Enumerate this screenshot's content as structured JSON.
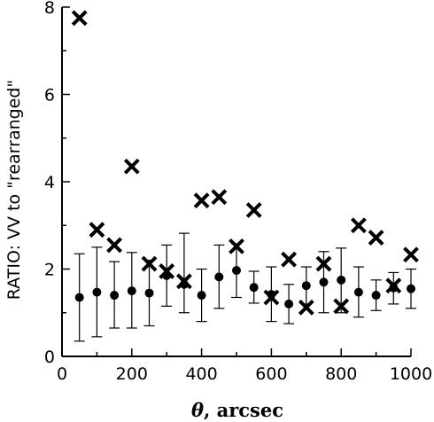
{
  "chart_data": {
    "type": "scatter",
    "xlabel_symbol": "θ",
    "xlabel_rest": ", arcsec",
    "ylabel": "RATIO: VV to \"rearranged\"",
    "xlim": [
      0,
      1000
    ],
    "ylim": [
      0,
      8
    ],
    "x_ticks": [
      0,
      200,
      400,
      600,
      800,
      1000
    ],
    "y_ticks": [
      0,
      2,
      4,
      6,
      8
    ],
    "x_minor_step": 100,
    "y_minor_step": 1,
    "grid": false,
    "legend": "none",
    "series": [
      {
        "marker": "circle",
        "color": "#000000",
        "points": [
          {
            "x": 50,
            "y": 1.35,
            "err_low": 0.35,
            "err_high": 2.35
          },
          {
            "x": 100,
            "y": 1.47,
            "err_low": 0.45,
            "err_high": 2.5
          },
          {
            "x": 150,
            "y": 1.4,
            "err_low": 0.65,
            "err_high": 2.17
          },
          {
            "x": 200,
            "y": 1.5,
            "err_low": 0.65,
            "err_high": 2.38
          },
          {
            "x": 250,
            "y": 1.45,
            "err_low": 0.7,
            "err_high": 2.2
          },
          {
            "x": 300,
            "y": 1.85,
            "err_low": 1.15,
            "err_high": 2.55
          },
          {
            "x": 350,
            "y": 1.65,
            "err_low": 1.0,
            "err_high": 2.82
          },
          {
            "x": 400,
            "y": 1.4,
            "err_low": 0.8,
            "err_high": 2.0
          },
          {
            "x": 450,
            "y": 1.82,
            "err_low": 1.1,
            "err_high": 2.55
          },
          {
            "x": 500,
            "y": 1.97,
            "err_low": 1.35,
            "err_high": 2.58
          },
          {
            "x": 550,
            "y": 1.58,
            "err_low": 1.22,
            "err_high": 1.95
          },
          {
            "x": 600,
            "y": 1.42,
            "err_low": 0.8,
            "err_high": 2.05
          },
          {
            "x": 650,
            "y": 1.2,
            "err_low": 0.75,
            "err_high": 1.65
          },
          {
            "x": 700,
            "y": 1.62,
            "err_low": 1.2,
            "err_high": 2.05
          },
          {
            "x": 750,
            "y": 1.7,
            "err_low": 1.0,
            "err_high": 2.4
          },
          {
            "x": 800,
            "y": 1.75,
            "err_low": 1.0,
            "err_high": 2.48
          },
          {
            "x": 850,
            "y": 1.47,
            "err_low": 0.9,
            "err_high": 2.05
          },
          {
            "x": 900,
            "y": 1.4,
            "err_low": 1.05,
            "err_high": 1.75
          },
          {
            "x": 950,
            "y": 1.57,
            "err_low": 1.2,
            "err_high": 1.92
          },
          {
            "x": 1000,
            "y": 1.55,
            "err_low": 1.1,
            "err_high": 2.0
          }
        ]
      },
      {
        "marker": "cross",
        "color": "#000000",
        "points": [
          {
            "x": 50,
            "y": 7.75
          },
          {
            "x": 100,
            "y": 2.9
          },
          {
            "x": 150,
            "y": 2.55
          },
          {
            "x": 200,
            "y": 4.35
          },
          {
            "x": 250,
            "y": 2.12
          },
          {
            "x": 300,
            "y": 1.95
          },
          {
            "x": 350,
            "y": 1.72
          },
          {
            "x": 400,
            "y": 3.57
          },
          {
            "x": 450,
            "y": 3.65
          },
          {
            "x": 500,
            "y": 2.52
          },
          {
            "x": 550,
            "y": 3.35
          },
          {
            "x": 600,
            "y": 1.35
          },
          {
            "x": 650,
            "y": 2.22
          },
          {
            "x": 700,
            "y": 1.12
          },
          {
            "x": 750,
            "y": 2.12
          },
          {
            "x": 800,
            "y": 1.15
          },
          {
            "x": 850,
            "y": 3.0
          },
          {
            "x": 900,
            "y": 2.72
          },
          {
            "x": 950,
            "y": 1.62
          },
          {
            "x": 1000,
            "y": 2.33
          }
        ]
      }
    ]
  }
}
